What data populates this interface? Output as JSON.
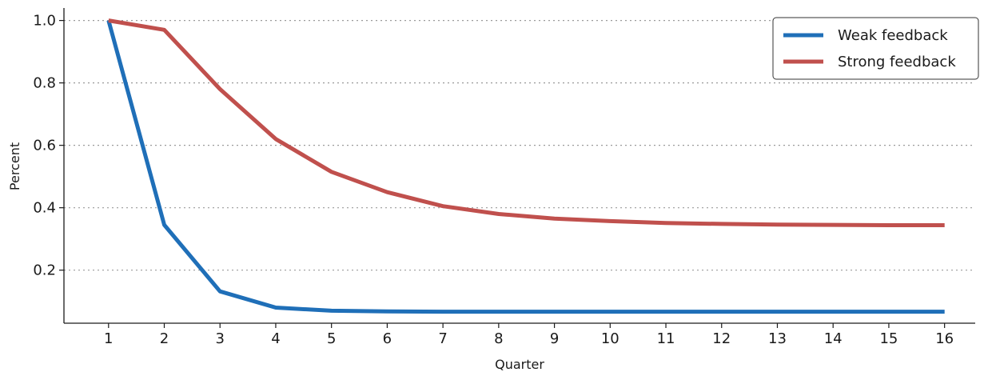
{
  "chart_data": {
    "type": "line",
    "xlabel": "Quarter",
    "ylabel": "Percent",
    "x": [
      1,
      2,
      3,
      4,
      5,
      6,
      7,
      8,
      9,
      10,
      11,
      12,
      13,
      14,
      15,
      16
    ],
    "xlim": [
      0.2,
      16.55
    ],
    "ylim": [
      0.03,
      1.04
    ],
    "yticks": [
      0.2,
      0.4,
      0.6,
      0.8,
      1.0
    ],
    "ytick_labels": [
      "0.2",
      "0.4",
      "0.6",
      "0.8",
      "1.0"
    ],
    "xtick_labels": [
      "1",
      "2",
      "3",
      "4",
      "5",
      "6",
      "7",
      "8",
      "9",
      "10",
      "11",
      "12",
      "13",
      "14",
      "15",
      "16"
    ],
    "grid": "horizontal dotted",
    "legend_position": "top-right",
    "series": [
      {
        "name": "Weak feedback",
        "color": "#1f6fb8",
        "values": [
          1.0,
          0.345,
          0.132,
          0.08,
          0.07,
          0.068,
          0.067,
          0.067,
          0.067,
          0.067,
          0.067,
          0.067,
          0.067,
          0.067,
          0.067,
          0.067
        ]
      },
      {
        "name": "Strong feedback",
        "color": "#c0504d",
        "values": [
          1.0,
          0.97,
          0.78,
          0.62,
          0.515,
          0.45,
          0.405,
          0.38,
          0.365,
          0.357,
          0.351,
          0.348,
          0.346,
          0.345,
          0.344,
          0.344
        ]
      }
    ]
  }
}
